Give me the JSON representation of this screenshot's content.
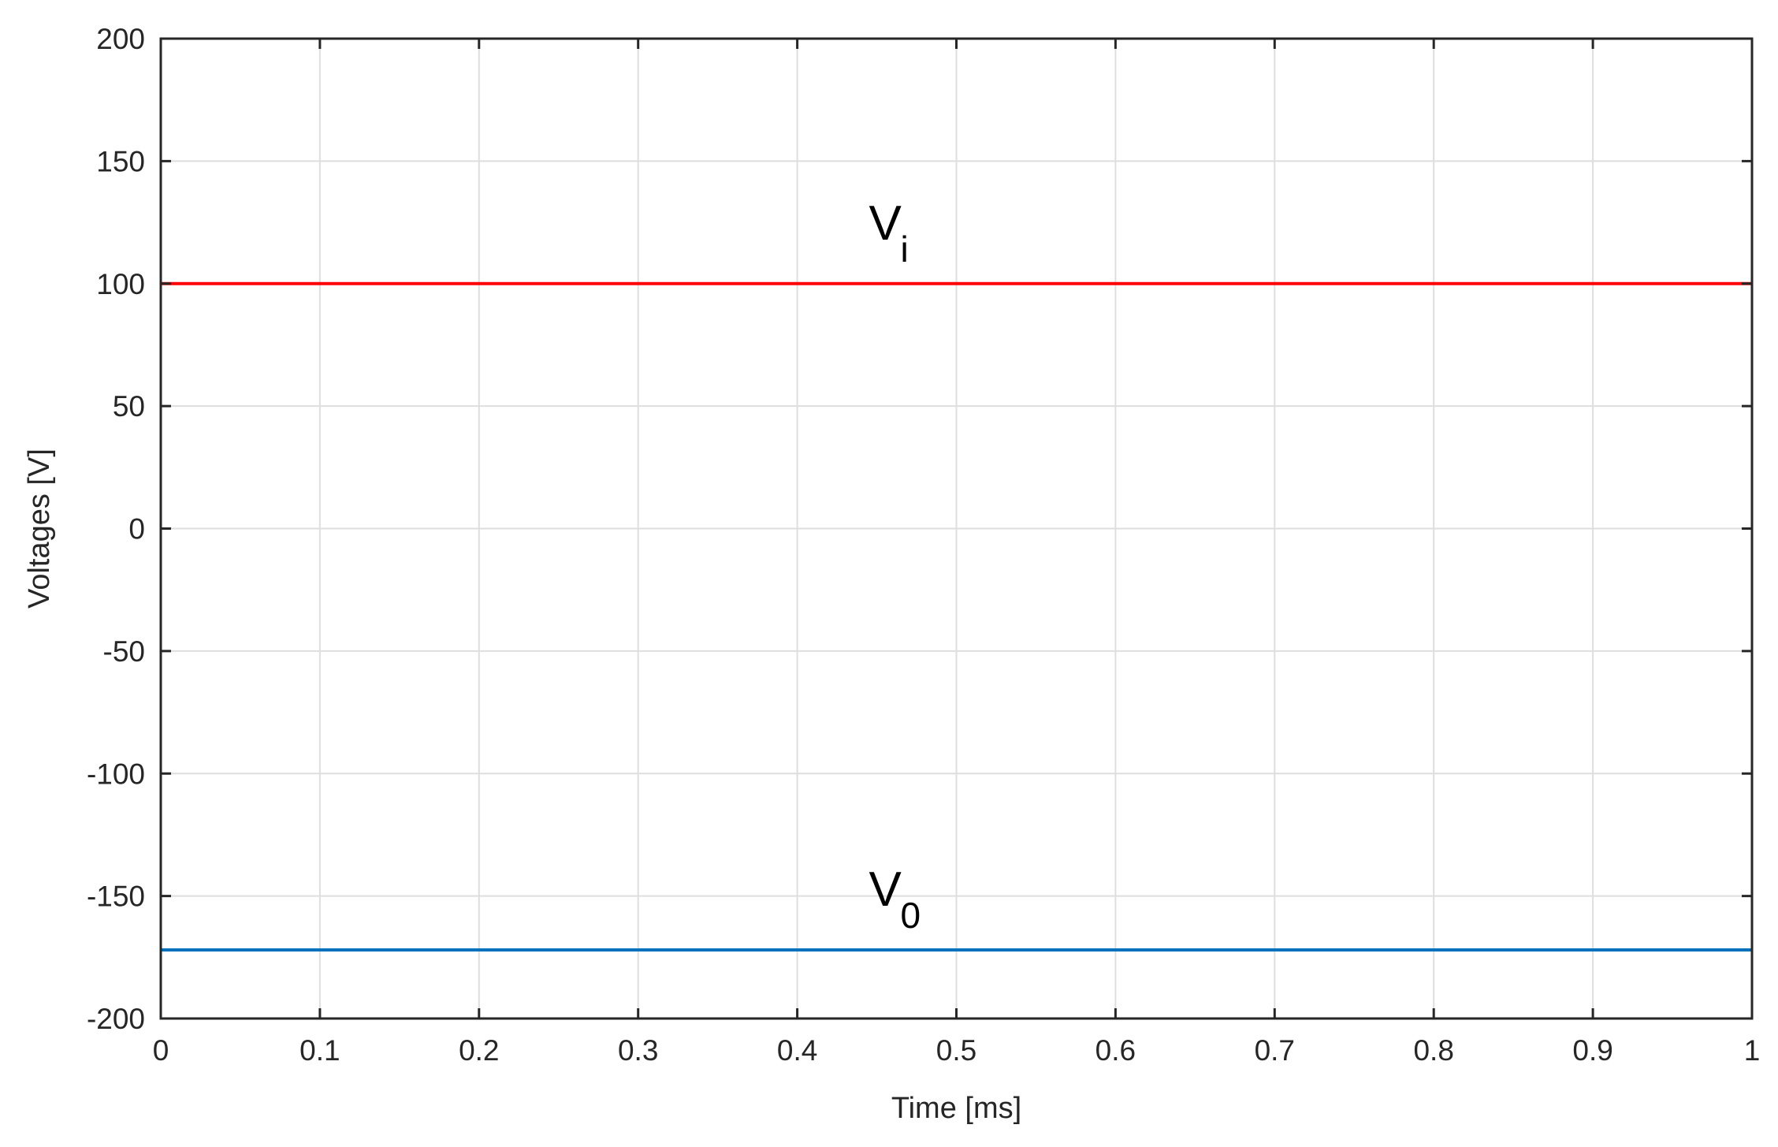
{
  "chart_data": {
    "type": "line",
    "xlabel": "Time [ms]",
    "ylabel": "Voltages [V]",
    "xlim": [
      0,
      1
    ],
    "ylim": [
      -200,
      200
    ],
    "x_ticks": [
      0,
      0.1,
      0.2,
      0.3,
      0.4,
      0.5,
      0.6,
      0.7,
      0.8,
      0.9,
      1
    ],
    "x_tick_labels": [
      "0",
      "0.1",
      "0.2",
      "0.3",
      "0.4",
      "0.5",
      "0.6",
      "0.7",
      "0.8",
      "0.9",
      "1"
    ],
    "y_ticks": [
      200,
      150,
      100,
      50,
      0,
      -50,
      -100,
      -150,
      -200
    ],
    "y_tick_labels": [
      "200",
      "150",
      "100",
      "50",
      "0",
      "-50",
      "-100",
      "-150",
      "-200"
    ],
    "grid": true,
    "series": [
      {
        "name": "V_i",
        "color": "#ff0000",
        "x": [
          0,
          1
        ],
        "y": [
          100,
          100
        ]
      },
      {
        "name": "V_0",
        "color": "#0072bd",
        "x": [
          0,
          1
        ],
        "y": [
          -172,
          -172
        ]
      }
    ],
    "annotations": [
      {
        "id": "vi",
        "main": "V",
        "sub": "i",
        "x": 0.445,
        "y": 118
      },
      {
        "id": "vo",
        "main": "V",
        "sub": "0",
        "x": 0.445,
        "y": -154
      }
    ]
  }
}
